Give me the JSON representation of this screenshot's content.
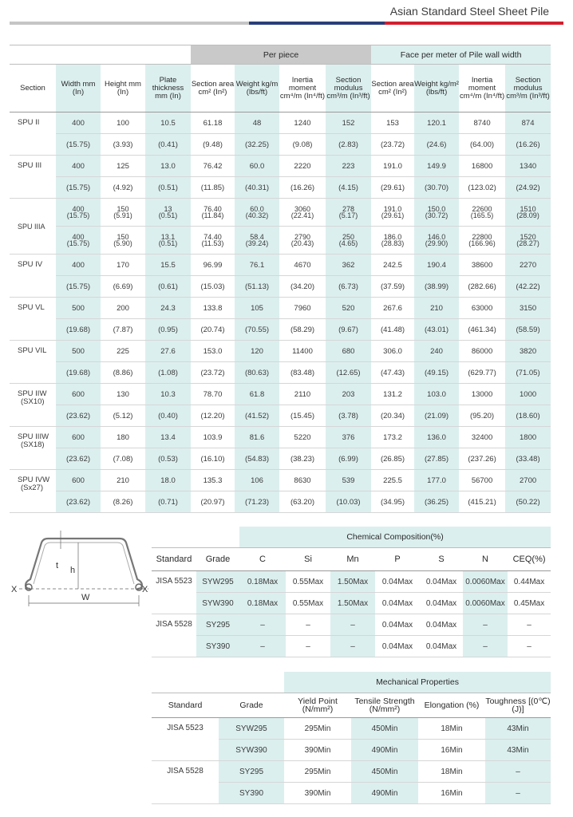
{
  "header": {
    "title": "Asian Standard Steel Sheet Pile"
  },
  "main_table": {
    "group_headers": {
      "per_piece": "Per piece",
      "face_per_meter": "Face per meter of Pile wall width"
    },
    "columns": {
      "section": "Section",
      "width": "Width mm (In)",
      "height": "Height mm (In)",
      "plate": "Plate thickness mm (In)",
      "pp_area": "Section area cm² (In²)",
      "pp_weight": "Weight kg/m (lbs/ft)",
      "pp_inertia": "Inertia moment cm⁴/m (In⁴/ft)",
      "pp_modulus": "Section modulus cm³/m (In³/ft)",
      "fm_area": "Section area cm² (In²)",
      "fm_weight": "Weight kg/m² (lbs/ft)",
      "fm_inertia": "Inertia moment cm⁴/m (In⁴/ft)",
      "fm_modulus": "Section modulus cm³/m (In³/ft)"
    },
    "sections": [
      {
        "name": "SPU II",
        "metric": [
          "400",
          "100",
          "10.5",
          "61.18",
          "48",
          "1240",
          "152",
          "153",
          "120.1",
          "8740",
          "874"
        ],
        "imperial": [
          "(15.75)",
          "(3.93)",
          "(0.41)",
          "(9.48)",
          "(32.25)",
          "(9.08)",
          "(2.83)",
          "(23.72)",
          "(24.6)",
          "(64.00)",
          "(16.26)"
        ]
      },
      {
        "name": "SPU III",
        "metric": [
          "400",
          "125",
          "13.0",
          "76.42",
          "60.0",
          "2220",
          "223",
          "191.0",
          "149.9",
          "16800",
          "1340"
        ],
        "imperial": [
          "(15.75)",
          "(4.92)",
          "(0.51)",
          "(11.85)",
          "(40.31)",
          "(16.26)",
          "(4.15)",
          "(29.61)",
          "(30.70)",
          "(123.02)",
          "(24.92)"
        ]
      },
      {
        "name": "SPU IIIA",
        "sub": [
          {
            "metric": [
              "400",
              "150",
              "13",
              "76.40",
              "60.0",
              "3060",
              "278",
              "191.0",
              "150.0",
              "22600",
              "1510"
            ],
            "imperial": [
              "(15.75)",
              "(5.91)",
              "(0.51)",
              "(11.84)",
              "(40.32)",
              "(22.41)",
              "(5.17)",
              "(29.61)",
              "(30.72)",
              "(165.5)",
              "(28.09)"
            ]
          },
          {
            "metric": [
              "400",
              "150",
              "13.1",
              "74.40",
              "58.4",
              "2790",
              "250",
              "186.0",
              "146.0",
              "22800",
              "1520"
            ],
            "imperial": [
              "(15.75)",
              "(5.90)",
              "(0.51)",
              "(11.53)",
              "(39.24)",
              "(20.43)",
              "(4.65)",
              "(28.83)",
              "(29.90)",
              "(166.96)",
              "(28.27)"
            ]
          }
        ]
      },
      {
        "name": "SPU IV",
        "metric": [
          "400",
          "170",
          "15.5",
          "96.99",
          "76.1",
          "4670",
          "362",
          "242.5",
          "190.4",
          "38600",
          "2270"
        ],
        "imperial": [
          "(15.75)",
          "(6.69)",
          "(0.61)",
          "(15.03)",
          "(51.13)",
          "(34.20)",
          "(6.73)",
          "(37.59)",
          "(38.99)",
          "(282.66)",
          "(42.22)"
        ]
      },
      {
        "name": "SPU VL",
        "metric": [
          "500",
          "200",
          "24.3",
          "133.8",
          "105",
          "7960",
          "520",
          "267.6",
          "210",
          "63000",
          "3150"
        ],
        "imperial": [
          "(19.68)",
          "(7.87)",
          "(0.95)",
          "(20.74)",
          "(70.55)",
          "(58.29)",
          "(9.67)",
          "(41.48)",
          "(43.01)",
          "(461.34)",
          "(58.59)"
        ]
      },
      {
        "name": "SPU VIL",
        "metric": [
          "500",
          "225",
          "27.6",
          "153.0",
          "120",
          "11400",
          "680",
          "306.0",
          "240",
          "86000",
          "3820"
        ],
        "imperial": [
          "(19.68)",
          "(8.86)",
          "(1.08)",
          "(23.72)",
          "(80.63)",
          "(83.48)",
          "(12.65)",
          "(47.43)",
          "(49.15)",
          "(629.77)",
          "(71.05)"
        ]
      },
      {
        "name": "SPU IIW",
        "name2": "(SX10)",
        "metric": [
          "600",
          "130",
          "10.3",
          "78.70",
          "61.8",
          "2110",
          "203",
          "131.2",
          "103.0",
          "13000",
          "1000"
        ],
        "imperial": [
          "(23.62)",
          "(5.12)",
          "(0.40)",
          "(12.20)",
          "(41.52)",
          "(15.45)",
          "(3.78)",
          "(20.34)",
          "(21.09)",
          "(95.20)",
          "(18.60)"
        ]
      },
      {
        "name": "SPU IIIW",
        "name2": "(SX18)",
        "metric": [
          "600",
          "180",
          "13.4",
          "103.9",
          "81.6",
          "5220",
          "376",
          "173.2",
          "136.0",
          "32400",
          "1800"
        ],
        "imperial": [
          "(23.62)",
          "(7.08)",
          "(0.53)",
          "(16.10)",
          "(54.83)",
          "(38.23)",
          "(6.99)",
          "(26.85)",
          "(27.85)",
          "(237.26)",
          "(33.48)"
        ]
      },
      {
        "name": "SPU IVW",
        "name2": "(Sx27)",
        "metric": [
          "600",
          "210",
          "18.0",
          "135.3",
          "106",
          "8630",
          "539",
          "225.5",
          "177.0",
          "56700",
          "2700"
        ],
        "imperial": [
          "(23.62)",
          "(8.26)",
          "(0.71)",
          "(20.97)",
          "(71.23)",
          "(63.20)",
          "(10.03)",
          "(34.95)",
          "(36.25)",
          "(415.21)",
          "(50.22)"
        ]
      }
    ]
  },
  "diagram": {
    "label_t": "t",
    "label_h": "h",
    "label_w": "W",
    "label_x_left": "X",
    "label_x_right": "X"
  },
  "chemical": {
    "title": "Chemical Composition(%)",
    "headers": [
      "Standard",
      "Grade",
      "C",
      "Si",
      "Mn",
      "P",
      "S",
      "N",
      "CEQ(%)"
    ],
    "rows": [
      {
        "standard": "JISA 5523",
        "cells": [
          "SYW295",
          "0.18Max",
          "0.55Max",
          "1.50Max",
          "0.04Max",
          "0.04Max",
          "0.0060Max",
          "0.44Max"
        ]
      },
      {
        "standard": "",
        "cells": [
          "SYW390",
          "0.18Max",
          "0.55Max",
          "1.50Max",
          "0.04Max",
          "0.04Max",
          "0.0060Max",
          "0.45Max"
        ]
      },
      {
        "standard": "JISA 5528",
        "cells": [
          "SY295",
          "–",
          "–",
          "–",
          "0.04Max",
          "0.04Max",
          "–",
          "–"
        ]
      },
      {
        "standard": "",
        "cells": [
          "SY390",
          "–",
          "–",
          "–",
          "0.04Max",
          "0.04Max",
          "–",
          "–"
        ]
      }
    ]
  },
  "mechanical": {
    "title": "Mechanical Properties",
    "headers": [
      "Standard",
      "Grade",
      "Yield Point (N/mm²)",
      "Tensile Strength (N/mm²)",
      "Elongation (%)",
      "Toughness [(0℃)(J)]"
    ],
    "rows": [
      {
        "standard": "JISA 5523",
        "cells": [
          "SYW295",
          "295Min",
          "450Min",
          "18Min",
          "43Min"
        ]
      },
      {
        "standard": "",
        "cells": [
          "SYW390",
          "390Min",
          "490Min",
          "16Min",
          "43Min"
        ]
      },
      {
        "standard": "JISA 5528",
        "cells": [
          "SY295",
          "295Min",
          "450Min",
          "18Min",
          "–"
        ]
      },
      {
        "standard": "",
        "cells": [
          "SY390",
          "390Min",
          "490Min",
          "16Min",
          "–"
        ]
      }
    ]
  }
}
